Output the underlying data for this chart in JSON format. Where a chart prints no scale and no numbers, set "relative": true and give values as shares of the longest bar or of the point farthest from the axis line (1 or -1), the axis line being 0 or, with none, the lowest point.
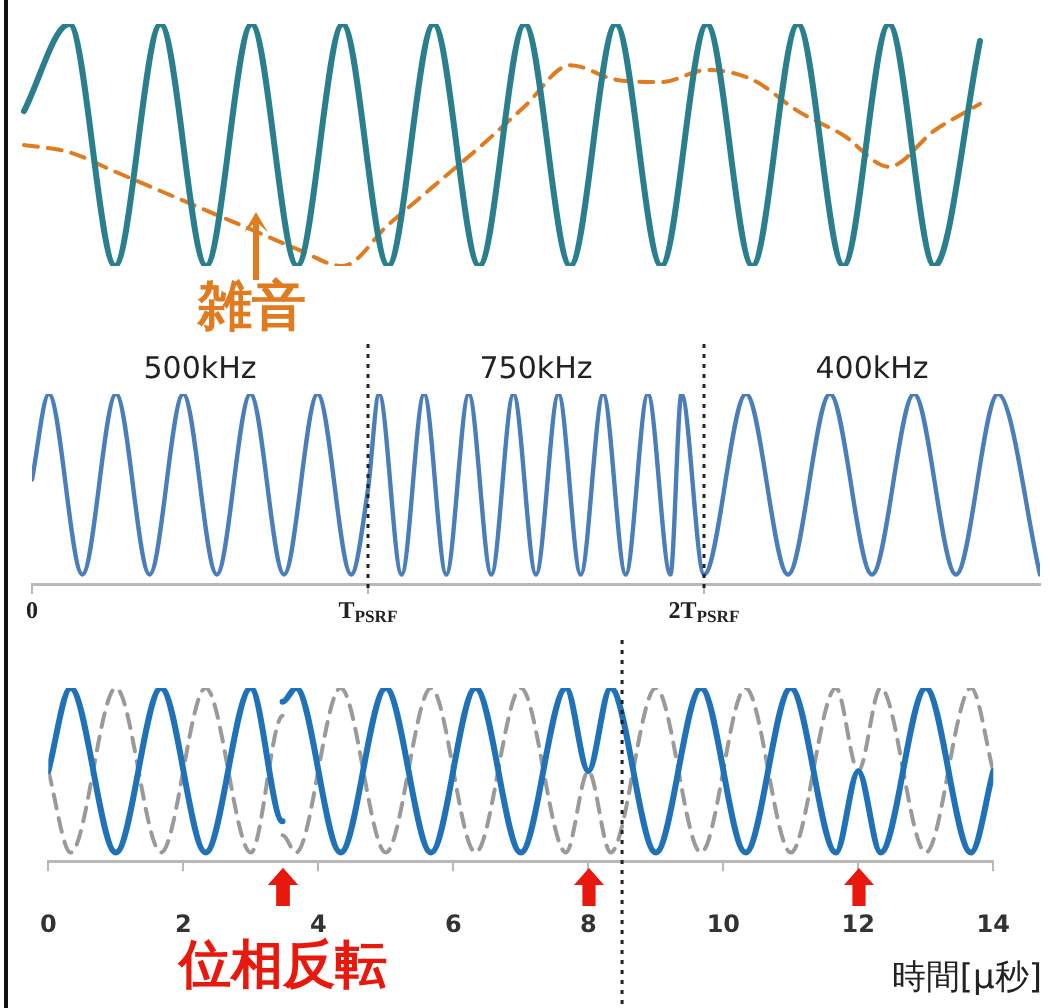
{
  "chart_data": [
    {
      "type": "line",
      "relative": true,
      "categories": [
        null,
        null,
        null,
        null,
        null,
        null,
        null,
        null,
        null,
        null,
        null,
        null,
        null,
        null,
        null,
        null,
        null,
        null,
        null,
        null,
        null,
        null
      ],
      "series": [
        {
          "color": "#2a7f8e",
          "values": [
            0.64,
            1,
            0,
            1,
            0,
            1,
            0,
            1,
            0,
            1,
            0,
            1,
            0,
            1,
            0,
            1,
            0,
            1,
            0,
            1,
            0,
            0.93
          ]
        },
        {
          "color": "#e07b20",
          "line_style": "dashed",
          "values": [
            0.5,
            0.47,
            0.39,
            0.31,
            0.23,
            0.15,
            0.07,
            0,
            0.17,
            0.33,
            0.49,
            0.66,
            0.83,
            0.77,
            0.76,
            0.81,
            0.77,
            0.64,
            0.54,
            0.41,
            0.56,
            0.67
          ]
        }
      ],
      "annotations": [
        "雑音"
      ],
      "tick_labels": false,
      "grid": false,
      "legend": false,
      "marker": "none"
    },
    {
      "type": "line",
      "relative": true,
      "xlim": [
        0,
        3
      ],
      "xticks": [
        0,
        {
          "value": 1,
          "label": "T$_{PSRF}$"
        },
        {
          "value": 2,
          "label": "2T$_{PSRF}$"
        }
      ],
      "series": [
        {
          "color": "#4a7ebb",
          "x": [
            0,
            0.05,
            0.15,
            0.25,
            0.35,
            0.45,
            0.55,
            0.65,
            0.75,
            0.85,
            0.95,
            1.0,
            1.033,
            1.1,
            1.167,
            1.233,
            1.3,
            1.367,
            1.433,
            1.5,
            1.567,
            1.633,
            1.7,
            1.767,
            1.833,
            1.9,
            1.933,
            2.0,
            2.125,
            2.25,
            2.375,
            2.5,
            2.625,
            2.75,
            2.875,
            3.0
          ],
          "values": [
            0.55,
            1,
            0.05,
            1,
            0.05,
            1,
            0.05,
            1,
            0.05,
            1,
            0.05,
            0.5,
            1,
            0.05,
            1,
            0.05,
            1,
            0.05,
            1,
            0.05,
            1,
            0.05,
            1,
            0.05,
            1,
            0.05,
            1,
            0.05,
            1,
            0.05,
            1,
            0.05,
            1,
            0.05,
            1,
            0.05
          ]
        }
      ],
      "ref_lines": [
        {
          "axis": "x",
          "value": 1,
          "line_style": "dotted"
        },
        {
          "axis": "x",
          "value": 2,
          "line_style": "dotted"
        }
      ],
      "annotations": [
        "500kHz",
        "750kHz",
        "400kHz"
      ],
      "tick_labels": "x",
      "grid": false,
      "legend": false,
      "marker": "none"
    },
    {
      "type": "line",
      "relative": true,
      "xlim": [
        0,
        14
      ],
      "xticks": [
        0,
        2,
        4,
        6,
        8,
        10,
        12,
        14
      ],
      "xlabel": "時間[μ秒]",
      "series": [
        {
          "color": "#1f72b8",
          "x": [
            0,
            0.33,
            1.0,
            1.67,
            2.33,
            3.0,
            3.47,
            3.47,
            3.67,
            4.33,
            5.0,
            5.67,
            6.33,
            7.0,
            7.67,
            8.0,
            8.33,
            9.0,
            9.67,
            10.33,
            11.0,
            11.67,
            12.0,
            12.33,
            13.0,
            13.67,
            14.0
          ],
          "values": [
            0.52,
            1,
            0.05,
            1,
            0.05,
            1,
            0.23,
            0.92,
            1,
            0.05,
            1,
            0.05,
            1,
            0.05,
            1,
            0.52,
            1,
            0.05,
            1,
            0.05,
            1,
            0.05,
            0.52,
            0.05,
            1,
            0.05,
            0.52
          ]
        },
        {
          "color": "#9a9a9a",
          "line_style": "dashed",
          "x": [
            0,
            0.33,
            1.0,
            1.67,
            2.33,
            3.0,
            3.47,
            3.47,
            3.67,
            4.33,
            5.0,
            5.67,
            6.33,
            7.0,
            7.67,
            8.0,
            8.33,
            9.0,
            9.67,
            10.33,
            11.0,
            11.67,
            12.0,
            12.33,
            13.0,
            13.67,
            14.0
          ],
          "values": [
            0.52,
            0.05,
            1,
            0.05,
            1,
            0.05,
            0.84,
            0.15,
            0.05,
            1,
            0.05,
            1,
            0.05,
            1,
            0.05,
            0.52,
            0.05,
            1,
            0.05,
            1,
            0.05,
            1,
            0.52,
            1,
            0.05,
            1,
            0.52
          ]
        }
      ],
      "ref_lines": [
        {
          "axis": "x",
          "value": 8.5,
          "line_style": "dotted"
        }
      ],
      "annotations": [
        "位相反転"
      ],
      "tick_labels": "x",
      "grid": false,
      "legend": false,
      "marker": "none"
    }
  ]
}
